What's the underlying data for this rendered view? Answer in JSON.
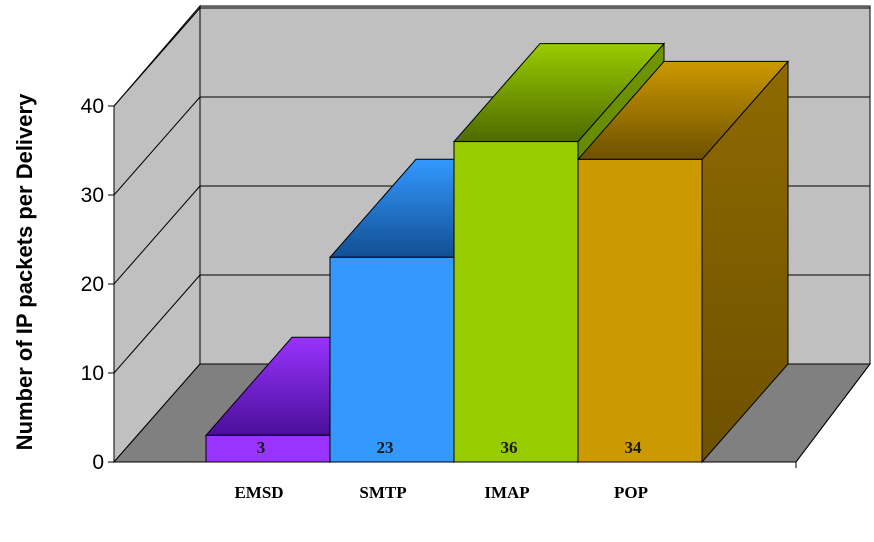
{
  "chart_data": {
    "type": "bar",
    "title": "",
    "xlabel": "",
    "ylabel": "Number of IP packets per Delivery",
    "categories": [
      "EMSD",
      "SMTP",
      "IMAP",
      "POP"
    ],
    "values": [
      3,
      23,
      36,
      34
    ],
    "ylim": [
      0,
      40
    ],
    "yticks": [
      0,
      10,
      20,
      30,
      40
    ],
    "grid": true,
    "legend": "none",
    "colors": {
      "EMSD": {
        "front": "#9933ff",
        "top": "#6b1fc6",
        "side": "#4a0f99"
      },
      "SMTP": {
        "front": "#3399ff",
        "top": "#1f6fc4",
        "side": "#124f94"
      },
      "IMAP": {
        "front": "#99cc00",
        "top": "#6f9600",
        "side": "#4d6a00"
      },
      "POP": {
        "front": "#cc9900",
        "top": "#8f6a00",
        "side": "#6e5100"
      }
    },
    "back_wall_color": "#c0c0c0",
    "floor_color": "#808080"
  }
}
